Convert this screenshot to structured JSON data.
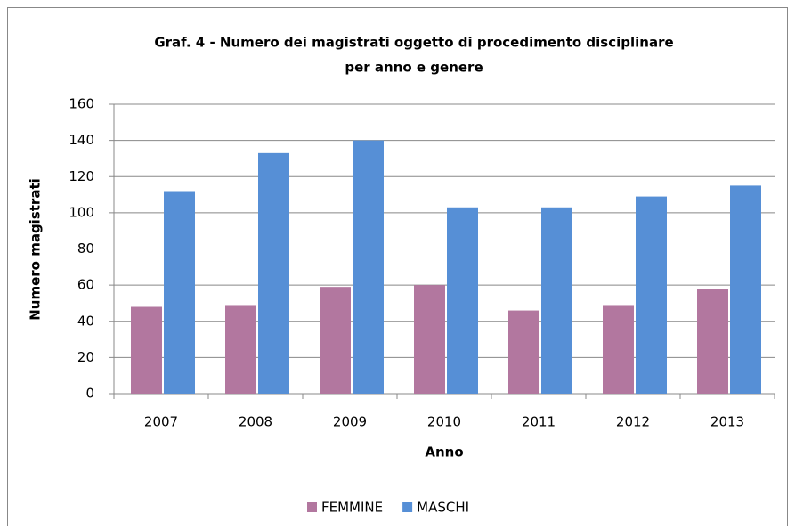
{
  "chart_data": {
    "type": "bar",
    "title": [
      "Graf. 4 - Numero dei magistrati oggetto di procedimento disciplinare",
      "per anno e genere"
    ],
    "x_label": "Anno",
    "y_label": "Numero magistrati",
    "categories": [
      "2007",
      "2008",
      "2009",
      "2010",
      "2011",
      "2012",
      "2013"
    ],
    "series": [
      {
        "name": "FEMMINE",
        "color": "#b2779f",
        "values": [
          48,
          49,
          59,
          60,
          46,
          49,
          58
        ]
      },
      {
        "name": "MASCHI",
        "color": "#568fd6",
        "values": [
          112,
          133,
          140,
          103,
          103,
          109,
          115
        ]
      }
    ],
    "ylim": [
      0,
      160
    ],
    "yticks": [
      0,
      20,
      40,
      60,
      80,
      100,
      120,
      140,
      160
    ],
    "grid": true,
    "legend": "bottom"
  }
}
